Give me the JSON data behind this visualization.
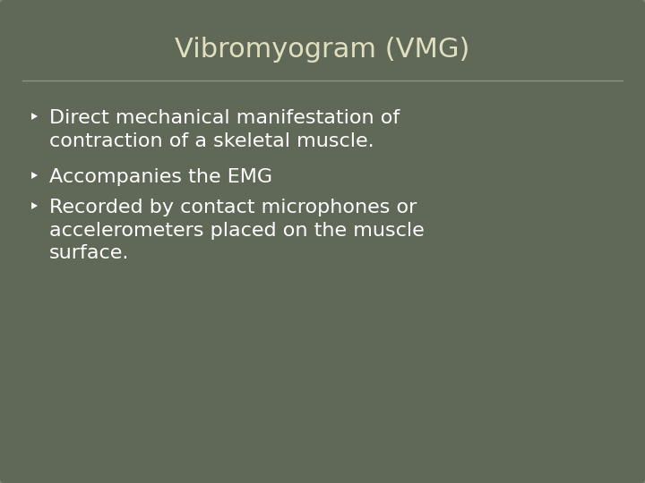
{
  "title": "Vibromyogram (VMG)",
  "title_color": "#e0e0c0",
  "title_fontsize": 22,
  "background_color": "#606858",
  "border_color": "#7a8575",
  "text_color": "#ffffff",
  "separator_color": "#8a9585",
  "bullet_points": [
    "Direct mechanical manifestation of\ncontraction of a skeletal muscle.",
    "Accompanies the EMG",
    "Recorded by contact microphones or\naccelerometers placed on the muscle\nsurface."
  ],
  "bullet_char": "‣",
  "body_fontsize": 16,
  "figsize": [
    7.2,
    5.4
  ],
  "dpi": 100
}
